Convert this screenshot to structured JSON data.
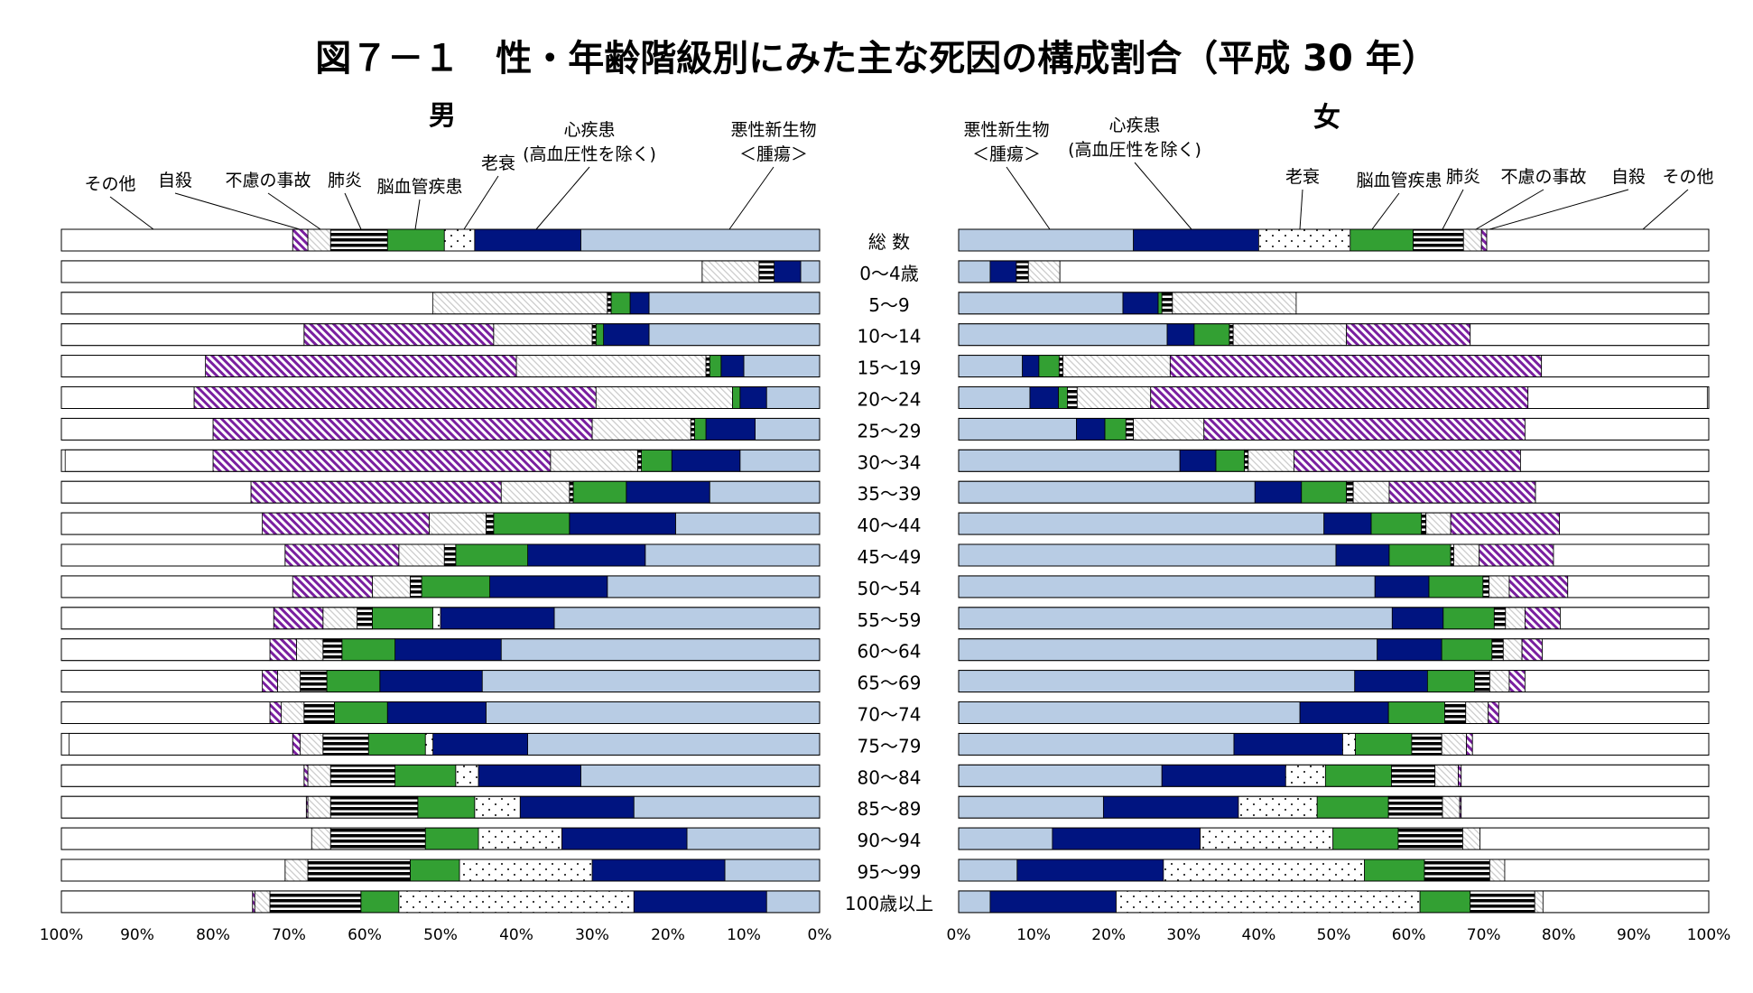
{
  "title": "図７－１　性・年齢階級別にみた主な死因の構成割合（平成 30 年）",
  "panels": {
    "male": {
      "title": "男"
    },
    "female": {
      "title": "女"
    }
  },
  "colors": {
    "malignant_neoplasm": "#b8cce4",
    "heart_disease": "#001480",
    "senility": "#ffffff",
    "cerebrovascular": "#33a033",
    "pneumonia": "#000000",
    "accidents": "#d0d0d0",
    "suicide": "#7a1fa0",
    "other": "#ffffff"
  },
  "chart_data": [
    {
      "type": "bar",
      "orientation": "horizontal-stacked",
      "panel": "男",
      "x_direction": "reversed",
      "xlim": [
        0,
        100
      ],
      "x_ticks": [
        "100%",
        "90%",
        "80%",
        "70%",
        "60%",
        "50%",
        "40%",
        "30%",
        "20%",
        "10%",
        "0%"
      ],
      "categories": [
        "総 数",
        "0～4歳",
        "5～9",
        "10～14",
        "15～19",
        "20～24",
        "25～29",
        "30～34",
        "35～39",
        "40～44",
        "45～49",
        "50～54",
        "55～59",
        "60～64",
        "65～69",
        "70～74",
        "75～79",
        "80～84",
        "85～89",
        "90～94",
        "95～99",
        "100歳以上"
      ],
      "series": [
        {
          "name": "悪性新生物\n＜腫瘍＞",
          "key": "malignant_neoplasm",
          "values": [
            31.5,
            2.5,
            22.5,
            22.5,
            10,
            7,
            8.5,
            10.5,
            14.5,
            19,
            23,
            28,
            35,
            42,
            44.5,
            44,
            38.5,
            31.5,
            24.5,
            17.5,
            12.5,
            7
          ]
        },
        {
          "name": "心疾患\n(高血圧性を除く)",
          "key": "heart_disease",
          "values": [
            14,
            3.5,
            2.5,
            6,
            3,
            3.5,
            6.5,
            9,
            11,
            14,
            15.5,
            15.5,
            15,
            14,
            13.5,
            13,
            12.5,
            13.5,
            15,
            16.5,
            17.5,
            17.5
          ]
        },
        {
          "name": "老衰",
          "key": "senility",
          "values": [
            4,
            0,
            0,
            0,
            0,
            0,
            0,
            0,
            0,
            0,
            0,
            0,
            1,
            0,
            0,
            0,
            1,
            3,
            6,
            11,
            17.5,
            31
          ]
        },
        {
          "name": "脳血管疾患",
          "key": "cerebrovascular",
          "values": [
            7.5,
            0,
            2.5,
            1,
            1.5,
            1,
            1.5,
            4,
            7,
            10,
            9.5,
            9,
            8,
            7,
            7,
            7,
            7.5,
            8,
            7.5,
            7,
            6.5,
            5
          ]
        },
        {
          "name": "肺炎",
          "key": "pneumonia",
          "values": [
            7.5,
            2,
            0.5,
            0.5,
            0.5,
            0,
            0.5,
            0.5,
            0.5,
            1,
            1.5,
            1.5,
            2,
            2.5,
            3.5,
            4,
            6,
            8.5,
            11.5,
            12.5,
            13.5,
            12
          ]
        },
        {
          "name": "不慮の事故",
          "key": "accidents",
          "values": [
            3,
            7.5,
            23,
            13,
            25,
            18,
            13,
            11.5,
            9,
            7.5,
            6,
            5,
            4.5,
            3.5,
            3,
            3,
            3,
            3,
            3,
            2.5,
            3,
            2
          ]
        },
        {
          "name": "自殺",
          "key": "suicide",
          "values": [
            2,
            0,
            0,
            25,
            41,
            53,
            50,
            44.5,
            33,
            22,
            15,
            10.5,
            6.5,
            3.5,
            2,
            1.5,
            1,
            0.5,
            0.2,
            0,
            0,
            0.3
          ]
        },
        {
          "name": "その他",
          "key": "other",
          "values": [
            30.5,
            84.5,
            49,
            32,
            19,
            17.5,
            20,
            19.5,
            25,
            26.5,
            29.5,
            30.5,
            29,
            27.5,
            26.5,
            27.5,
            29.5,
            32,
            33.3,
            33,
            29.5,
            25.7
          ]
        }
      ]
    },
    {
      "type": "bar",
      "orientation": "horizontal-stacked",
      "panel": "女",
      "x_direction": "normal",
      "xlim": [
        0,
        100
      ],
      "x_ticks": [
        "0%",
        "10%",
        "20%",
        "30%",
        "40%",
        "50%",
        "60%",
        "70%",
        "80%",
        "90%",
        "100%"
      ],
      "categories": [
        "総 数",
        "0～4歳",
        "5～9",
        "10～14",
        "15～19",
        "20～24",
        "25～29",
        "30～34",
        "35～39",
        "40～44",
        "45～49",
        "50～54",
        "55～59",
        "60～64",
        "65～69",
        "70～74",
        "75～79",
        "80～84",
        "85～89",
        "90～94",
        "95～99",
        "100歳以上"
      ],
      "series": [
        {
          "name": "悪性新生物\n＜腫瘍＞",
          "key": "malignant_neoplasm",
          "values": [
            23.3,
            4.2,
            21.9,
            27.8,
            8.5,
            9.5,
            15.7,
            29.5,
            39.5,
            48.7,
            50.3,
            55.5,
            57.8,
            55.8,
            52.8,
            45.5,
            36.7,
            27.1,
            19.3,
            12.5,
            7.8,
            4.2
          ]
        },
        {
          "name": "心疾患\n(高血圧性を除く)",
          "key": "heart_disease",
          "values": [
            16.7,
            3.5,
            4.7,
            3.6,
            2.2,
            3.8,
            3.8,
            4.8,
            6.2,
            6.3,
            7.1,
            7.2,
            6.8,
            8.6,
            9.7,
            11.8,
            14.5,
            16.5,
            18,
            19.7,
            19.5,
            16.8
          ]
        },
        {
          "name": "老衰",
          "key": "senility",
          "values": [
            12.2,
            0,
            0,
            0,
            0,
            0,
            0,
            0,
            0,
            0,
            0,
            0,
            0,
            0,
            0,
            0,
            1.7,
            5.3,
            10.5,
            17.7,
            26.8,
            40.5
          ]
        },
        {
          "name": "脳血管疾患",
          "key": "cerebrovascular",
          "values": [
            8.4,
            0,
            0.5,
            4.7,
            2.7,
            1.2,
            2.8,
            3.8,
            6,
            6.7,
            8.2,
            7.2,
            6.8,
            6.7,
            6.3,
            7.5,
            7.5,
            8.8,
            9.5,
            8.7,
            8,
            6.7
          ]
        },
        {
          "name": "肺炎",
          "key": "pneumonia",
          "values": [
            6.7,
            1.6,
            1.4,
            0.5,
            0.5,
            1.3,
            1,
            0.5,
            0.9,
            0.6,
            0.4,
            0.8,
            1.5,
            1.5,
            2,
            2.8,
            4,
            5.8,
            7.2,
            8.6,
            8.7,
            8.6
          ]
        },
        {
          "name": "不慮の事故",
          "key": "accidents",
          "values": [
            2.4,
            4.2,
            16.5,
            15.1,
            14.3,
            9.8,
            9.4,
            6.1,
            4.8,
            3.3,
            3.4,
            2.7,
            2.6,
            2.5,
            2.6,
            3,
            3.3,
            3.1,
            2.3,
            2.3,
            2,
            1.1
          ]
        },
        {
          "name": "自殺",
          "key": "suicide",
          "values": [
            0.7,
            0,
            0,
            16.5,
            49.5,
            50.3,
            42.8,
            30.2,
            19.5,
            14.5,
            9.9,
            7.8,
            4.7,
            2.7,
            2.1,
            1.4,
            0.8,
            0.4,
            0.2,
            0,
            0,
            0
          ]
        },
        {
          "name": "その他",
          "key": "other",
          "values": [
            29.6,
            86.5,
            55,
            31.8,
            22.3,
            23.9,
            24.5,
            25.1,
            23.1,
            19.9,
            20.7,
            18.8,
            19.8,
            22.2,
            24.5,
            28,
            31.5,
            33,
            33,
            30.5,
            27.2,
            22.1
          ]
        }
      ]
    }
  ]
}
